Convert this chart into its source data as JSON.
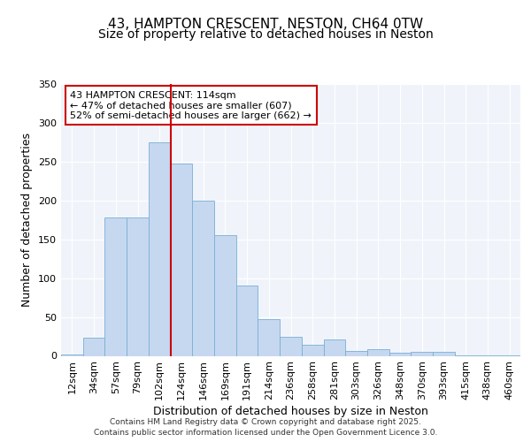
{
  "title1": "43, HAMPTON CRESCENT, NESTON, CH64 0TW",
  "title2": "Size of property relative to detached houses in Neston",
  "xlabel": "Distribution of detached houses by size in Neston",
  "ylabel": "Number of detached properties",
  "bar_labels": [
    "12sqm",
    "34sqm",
    "57sqm",
    "79sqm",
    "102sqm",
    "124sqm",
    "146sqm",
    "169sqm",
    "191sqm",
    "214sqm",
    "236sqm",
    "258sqm",
    "281sqm",
    "303sqm",
    "326sqm",
    "348sqm",
    "370sqm",
    "393sqm",
    "415sqm",
    "438sqm",
    "460sqm"
  ],
  "bar_values": [
    2,
    23,
    178,
    178,
    275,
    248,
    200,
    155,
    90,
    47,
    25,
    14,
    21,
    6,
    8,
    4,
    5,
    5,
    1,
    1,
    1
  ],
  "bar_color": "#c5d8f0",
  "bar_edge_color": "#7aafd4",
  "vline_index": 5,
  "vline_color": "#cc0000",
  "annotation_title": "43 HAMPTON CRESCENT: 114sqm",
  "annotation_line2": "← 47% of detached houses are smaller (607)",
  "annotation_line3": "52% of semi-detached houses are larger (662) →",
  "annotation_box_facecolor": "#ffffff",
  "annotation_box_edgecolor": "#cc0000",
  "ylim": [
    0,
    350
  ],
  "yticks": [
    0,
    50,
    100,
    150,
    200,
    250,
    300,
    350
  ],
  "fig_background": "#ffffff",
  "plot_background": "#f0f4fa",
  "footer1": "Contains HM Land Registry data © Crown copyright and database right 2025.",
  "footer2": "Contains public sector information licensed under the Open Government Licence 3.0.",
  "title1_fontsize": 11,
  "title2_fontsize": 10,
  "tick_fontsize": 8,
  "ylabel_fontsize": 9,
  "xlabel_fontsize": 9,
  "footer_fontsize": 6.5
}
